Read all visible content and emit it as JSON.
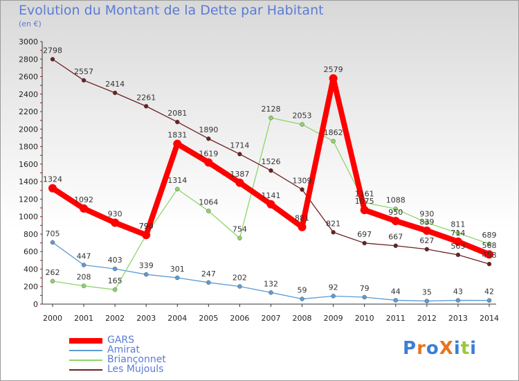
{
  "title": "Evolution du Montant de la Dette par Habitant",
  "subtitle": "(en €)",
  "brand": "ProXiti",
  "chart_data": {
    "type": "line",
    "title": "Evolution du Montant de la Dette par Habitant",
    "ylabel": "(en €)",
    "xlabel": "",
    "x": [
      "2000",
      "2001",
      "2002",
      "2003",
      "2004",
      "2005",
      "2006",
      "2007",
      "2008",
      "2009",
      "2010",
      "2011",
      "2012",
      "2013",
      "2014"
    ],
    "ylim": [
      0,
      3000
    ],
    "yticks": [
      0,
      200,
      400,
      600,
      800,
      1000,
      1200,
      1400,
      1600,
      1800,
      2000,
      2200,
      2400,
      2600,
      2800,
      3000
    ],
    "grid": false,
    "legend_position": "bottom-left",
    "series": [
      {
        "name": "GARS",
        "color": "#ff0000",
        "values": [
          1324,
          1092,
          930,
          790,
          1831,
          1619,
          1387,
          1141,
          881,
          2579,
          1075,
          950,
          839,
          714,
          568
        ]
      },
      {
        "name": "Amirat",
        "color": "#5b9bd5",
        "values": [
          705,
          447,
          403,
          339,
          301,
          247,
          202,
          132,
          59,
          92,
          79,
          44,
          35,
          43,
          42
        ]
      },
      {
        "name": "Briançonnet",
        "color": "#8ed46a",
        "values": [
          262,
          208,
          165,
          790,
          1314,
          1064,
          754,
          2128,
          2053,
          1862,
          1161,
          1088,
          930,
          811,
          689
        ]
      },
      {
        "name": "Les Mujouls",
        "color": "#6b2020",
        "values": [
          2798,
          2557,
          2414,
          2261,
          2081,
          1890,
          1714,
          1526,
          1309,
          821,
          697,
          667,
          627,
          563,
          458
        ]
      }
    ]
  }
}
